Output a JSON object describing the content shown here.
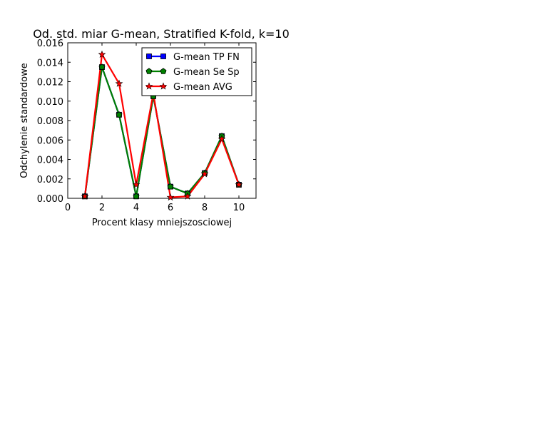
{
  "chart_data": {
    "type": "line",
    "title": "Od. std. miar G-mean, Stratified K-fold, k=10",
    "xlabel": "Procent klasy mniejszosciowej",
    "ylabel": "Odchylenie standardowe",
    "xlim": [
      0,
      11
    ],
    "ylim": [
      0,
      0.016
    ],
    "xticks": [
      0,
      2,
      4,
      6,
      8,
      10
    ],
    "xtick_labels": [
      "0",
      "2",
      "4",
      "6",
      "8",
      "10"
    ],
    "yticks": [
      0,
      0.002,
      0.004,
      0.006,
      0.008,
      0.01,
      0.012,
      0.014,
      0.016
    ],
    "ytick_labels": [
      "0.000",
      "0.002",
      "0.004",
      "0.006",
      "0.008",
      "0.010",
      "0.012",
      "0.014",
      "0.016"
    ],
    "grid": false,
    "legend_position": "top-right",
    "x": [
      1,
      2,
      3,
      4,
      5,
      6,
      7,
      8,
      9,
      10
    ],
    "series": [
      {
        "name": "G-mean TP FN",
        "color": "#0000ff",
        "marker": "square",
        "values": [
          0.0002,
          0.0135,
          0.0086,
          0.0002,
          0.0105,
          0.0012,
          0.0005,
          0.0026,
          0.0064,
          0.0014
        ]
      },
      {
        "name": "G-mean Se Sp",
        "color": "#008000",
        "marker": "pentagon",
        "values": [
          0.0002,
          0.0135,
          0.0086,
          0.0002,
          0.0105,
          0.0012,
          0.0005,
          0.0026,
          0.0064,
          0.0014
        ]
      },
      {
        "name": "G-mean AVG",
        "color": "#ff0000",
        "marker": "star",
        "values": [
          0.0002,
          0.0148,
          0.0118,
          0.0014,
          0.0108,
          0.0001,
          0.0002,
          0.0025,
          0.0061,
          0.0014
        ]
      }
    ]
  }
}
